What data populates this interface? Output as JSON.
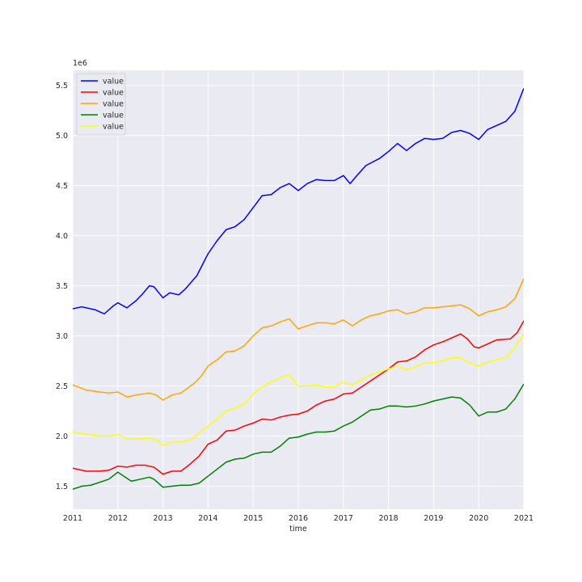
{
  "chart_data": {
    "type": "line",
    "title": "",
    "xlabel": "time",
    "ylabel": "",
    "y_multiplier_label": "1e6",
    "xlim": [
      2011,
      2021
    ],
    "ylim": [
      1.27,
      5.65
    ],
    "x_ticks": [
      2011,
      2012,
      2013,
      2014,
      2015,
      2016,
      2017,
      2018,
      2019,
      2020,
      2021
    ],
    "y_ticks": [
      1.5,
      2.0,
      2.5,
      3.0,
      3.5,
      4.0,
      4.5,
      5.0,
      5.5
    ],
    "y_tick_labels": [
      "1.5",
      "2.0",
      "2.5",
      "3.0",
      "3.5",
      "4.0",
      "4.5",
      "5.0",
      "5.5"
    ],
    "grid": true,
    "legend_position": "top-left",
    "background": "#eaeaf2",
    "series": [
      {
        "name": "value",
        "color": "#0000ff",
        "points": [
          [
            2011.0,
            3.27
          ],
          [
            2011.2,
            3.29
          ],
          [
            2011.5,
            3.26
          ],
          [
            2011.7,
            3.22
          ],
          [
            2011.9,
            3.3
          ],
          [
            2012.0,
            3.33
          ],
          [
            2012.2,
            3.28
          ],
          [
            2012.4,
            3.35
          ],
          [
            2012.55,
            3.42
          ],
          [
            2012.7,
            3.5
          ],
          [
            2012.8,
            3.49
          ],
          [
            2013.0,
            3.38
          ],
          [
            2013.15,
            3.43
          ],
          [
            2013.35,
            3.41
          ],
          [
            2013.5,
            3.47
          ],
          [
            2013.75,
            3.6
          ],
          [
            2014.0,
            3.82
          ],
          [
            2014.2,
            3.95
          ],
          [
            2014.4,
            4.06
          ],
          [
            2014.6,
            4.09
          ],
          [
            2014.8,
            4.16
          ],
          [
            2015.0,
            4.28
          ],
          [
            2015.2,
            4.4
          ],
          [
            2015.4,
            4.41
          ],
          [
            2015.6,
            4.48
          ],
          [
            2015.8,
            4.52
          ],
          [
            2016.0,
            4.45
          ],
          [
            2016.2,
            4.52
          ],
          [
            2016.4,
            4.56
          ],
          [
            2016.6,
            4.55
          ],
          [
            2016.8,
            4.55
          ],
          [
            2017.0,
            4.6
          ],
          [
            2017.15,
            4.52
          ],
          [
            2017.3,
            4.6
          ],
          [
            2017.5,
            4.7
          ],
          [
            2017.8,
            4.77
          ],
          [
            2018.0,
            4.84
          ],
          [
            2018.2,
            4.92
          ],
          [
            2018.4,
            4.85
          ],
          [
            2018.6,
            4.92
          ],
          [
            2018.8,
            4.97
          ],
          [
            2019.0,
            4.96
          ],
          [
            2019.2,
            4.97
          ],
          [
            2019.4,
            5.03
          ],
          [
            2019.6,
            5.05
          ],
          [
            2019.8,
            5.02
          ],
          [
            2020.0,
            4.96
          ],
          [
            2020.2,
            5.06
          ],
          [
            2020.4,
            5.1
          ],
          [
            2020.6,
            5.14
          ],
          [
            2020.8,
            5.24
          ],
          [
            2021.0,
            5.47
          ]
        ]
      },
      {
        "name": "value",
        "color": "#ff0000",
        "points": [
          [
            2011.0,
            1.68
          ],
          [
            2011.3,
            1.65
          ],
          [
            2011.6,
            1.65
          ],
          [
            2011.8,
            1.66
          ],
          [
            2012.0,
            1.7
          ],
          [
            2012.2,
            1.69
          ],
          [
            2012.4,
            1.71
          ],
          [
            2012.6,
            1.71
          ],
          [
            2012.8,
            1.69
          ],
          [
            2013.0,
            1.62
          ],
          [
            2013.2,
            1.65
          ],
          [
            2013.4,
            1.65
          ],
          [
            2013.6,
            1.72
          ],
          [
            2013.8,
            1.8
          ],
          [
            2014.0,
            1.92
          ],
          [
            2014.2,
            1.96
          ],
          [
            2014.4,
            2.05
          ],
          [
            2014.6,
            2.06
          ],
          [
            2014.8,
            2.1
          ],
          [
            2015.0,
            2.13
          ],
          [
            2015.2,
            2.17
          ],
          [
            2015.4,
            2.16
          ],
          [
            2015.6,
            2.19
          ],
          [
            2015.8,
            2.21
          ],
          [
            2016.0,
            2.22
          ],
          [
            2016.2,
            2.25
          ],
          [
            2016.4,
            2.31
          ],
          [
            2016.6,
            2.35
          ],
          [
            2016.8,
            2.37
          ],
          [
            2017.0,
            2.42
          ],
          [
            2017.2,
            2.43
          ],
          [
            2017.4,
            2.49
          ],
          [
            2017.6,
            2.55
          ],
          [
            2017.8,
            2.61
          ],
          [
            2018.0,
            2.67
          ],
          [
            2018.2,
            2.74
          ],
          [
            2018.4,
            2.75
          ],
          [
            2018.6,
            2.79
          ],
          [
            2018.8,
            2.86
          ],
          [
            2019.0,
            2.91
          ],
          [
            2019.2,
            2.94
          ],
          [
            2019.4,
            2.98
          ],
          [
            2019.6,
            3.02
          ],
          [
            2019.75,
            2.97
          ],
          [
            2019.9,
            2.89
          ],
          [
            2020.0,
            2.88
          ],
          [
            2020.2,
            2.92
          ],
          [
            2020.4,
            2.96
          ],
          [
            2020.7,
            2.97
          ],
          [
            2020.85,
            3.03
          ],
          [
            2021.0,
            3.15
          ]
        ]
      },
      {
        "name": "value",
        "color": "#ffa500",
        "points": [
          [
            2011.0,
            2.51
          ],
          [
            2011.3,
            2.46
          ],
          [
            2011.6,
            2.44
          ],
          [
            2011.8,
            2.43
          ],
          [
            2012.0,
            2.44
          ],
          [
            2012.2,
            2.39
          ],
          [
            2012.4,
            2.41
          ],
          [
            2012.7,
            2.43
          ],
          [
            2012.85,
            2.41
          ],
          [
            2013.0,
            2.36
          ],
          [
            2013.2,
            2.41
          ],
          [
            2013.4,
            2.43
          ],
          [
            2013.7,
            2.53
          ],
          [
            2013.85,
            2.6
          ],
          [
            2014.0,
            2.7
          ],
          [
            2014.2,
            2.76
          ],
          [
            2014.4,
            2.84
          ],
          [
            2014.6,
            2.85
          ],
          [
            2014.8,
            2.9
          ],
          [
            2015.0,
            3.0
          ],
          [
            2015.2,
            3.08
          ],
          [
            2015.4,
            3.1
          ],
          [
            2015.6,
            3.14
          ],
          [
            2015.8,
            3.17
          ],
          [
            2016.0,
            3.07
          ],
          [
            2016.2,
            3.1
          ],
          [
            2016.4,
            3.13
          ],
          [
            2016.6,
            3.13
          ],
          [
            2016.8,
            3.12
          ],
          [
            2017.0,
            3.16
          ],
          [
            2017.2,
            3.1
          ],
          [
            2017.4,
            3.16
          ],
          [
            2017.6,
            3.2
          ],
          [
            2017.8,
            3.22
          ],
          [
            2018.0,
            3.25
          ],
          [
            2018.2,
            3.26
          ],
          [
            2018.4,
            3.22
          ],
          [
            2018.6,
            3.24
          ],
          [
            2018.8,
            3.28
          ],
          [
            2019.0,
            3.28
          ],
          [
            2019.2,
            3.29
          ],
          [
            2019.4,
            3.3
          ],
          [
            2019.6,
            3.31
          ],
          [
            2019.8,
            3.27
          ],
          [
            2020.0,
            3.2
          ],
          [
            2020.2,
            3.24
          ],
          [
            2020.4,
            3.26
          ],
          [
            2020.6,
            3.29
          ],
          [
            2020.8,
            3.37
          ],
          [
            2021.0,
            3.57
          ]
        ]
      },
      {
        "name": "value",
        "color": "#008000",
        "points": [
          [
            2011.0,
            1.47
          ],
          [
            2011.2,
            1.5
          ],
          [
            2011.4,
            1.51
          ],
          [
            2011.6,
            1.54
          ],
          [
            2011.8,
            1.57
          ],
          [
            2012.0,
            1.64
          ],
          [
            2012.2,
            1.58
          ],
          [
            2012.3,
            1.55
          ],
          [
            2012.5,
            1.57
          ],
          [
            2012.7,
            1.59
          ],
          [
            2012.8,
            1.57
          ],
          [
            2013.0,
            1.49
          ],
          [
            2013.2,
            1.5
          ],
          [
            2013.4,
            1.51
          ],
          [
            2013.6,
            1.51
          ],
          [
            2013.8,
            1.53
          ],
          [
            2014.0,
            1.6
          ],
          [
            2014.2,
            1.67
          ],
          [
            2014.4,
            1.74
          ],
          [
            2014.6,
            1.77
          ],
          [
            2014.8,
            1.78
          ],
          [
            2015.0,
            1.82
          ],
          [
            2015.2,
            1.84
          ],
          [
            2015.4,
            1.84
          ],
          [
            2015.6,
            1.9
          ],
          [
            2015.8,
            1.98
          ],
          [
            2016.0,
            1.99
          ],
          [
            2016.2,
            2.02
          ],
          [
            2016.4,
            2.04
          ],
          [
            2016.6,
            2.04
          ],
          [
            2016.8,
            2.05
          ],
          [
            2017.0,
            2.1
          ],
          [
            2017.2,
            2.14
          ],
          [
            2017.4,
            2.2
          ],
          [
            2017.6,
            2.26
          ],
          [
            2017.8,
            2.27
          ],
          [
            2018.0,
            2.3
          ],
          [
            2018.2,
            2.3
          ],
          [
            2018.4,
            2.29
          ],
          [
            2018.6,
            2.3
          ],
          [
            2018.8,
            2.32
          ],
          [
            2019.0,
            2.35
          ],
          [
            2019.2,
            2.37
          ],
          [
            2019.4,
            2.39
          ],
          [
            2019.6,
            2.38
          ],
          [
            2019.8,
            2.31
          ],
          [
            2020.0,
            2.2
          ],
          [
            2020.2,
            2.24
          ],
          [
            2020.4,
            2.24
          ],
          [
            2020.6,
            2.27
          ],
          [
            2020.8,
            2.37
          ],
          [
            2021.0,
            2.52
          ]
        ]
      },
      {
        "name": "value",
        "color": "#ffff00",
        "points": [
          [
            2011.0,
            2.04
          ],
          [
            2011.3,
            2.02
          ],
          [
            2011.6,
            2.0
          ],
          [
            2011.8,
            2.0
          ],
          [
            2012.0,
            2.02
          ],
          [
            2012.2,
            1.97
          ],
          [
            2012.4,
            1.97
          ],
          [
            2012.7,
            1.98
          ],
          [
            2012.85,
            1.96
          ],
          [
            2013.0,
            1.91
          ],
          [
            2013.2,
            1.94
          ],
          [
            2013.4,
            1.94
          ],
          [
            2013.6,
            1.96
          ],
          [
            2013.8,
            2.03
          ],
          [
            2014.0,
            2.1
          ],
          [
            2014.2,
            2.17
          ],
          [
            2014.4,
            2.25
          ],
          [
            2014.6,
            2.28
          ],
          [
            2014.8,
            2.32
          ],
          [
            2015.0,
            2.42
          ],
          [
            2015.2,
            2.49
          ],
          [
            2015.4,
            2.54
          ],
          [
            2015.6,
            2.58
          ],
          [
            2015.8,
            2.61
          ],
          [
            2016.0,
            2.5
          ],
          [
            2016.2,
            2.5
          ],
          [
            2016.4,
            2.51
          ],
          [
            2016.6,
            2.49
          ],
          [
            2016.8,
            2.49
          ],
          [
            2017.0,
            2.54
          ],
          [
            2017.2,
            2.51
          ],
          [
            2017.4,
            2.56
          ],
          [
            2017.6,
            2.61
          ],
          [
            2017.8,
            2.64
          ],
          [
            2018.0,
            2.67
          ],
          [
            2018.2,
            2.7
          ],
          [
            2018.4,
            2.66
          ],
          [
            2018.6,
            2.69
          ],
          [
            2018.8,
            2.73
          ],
          [
            2019.0,
            2.73
          ],
          [
            2019.2,
            2.75
          ],
          [
            2019.4,
            2.78
          ],
          [
            2019.6,
            2.78
          ],
          [
            2019.8,
            2.73
          ],
          [
            2020.0,
            2.7
          ],
          [
            2020.2,
            2.74
          ],
          [
            2020.4,
            2.76
          ],
          [
            2020.6,
            2.78
          ],
          [
            2020.8,
            2.88
          ],
          [
            2021.0,
            3.02
          ]
        ]
      }
    ]
  }
}
